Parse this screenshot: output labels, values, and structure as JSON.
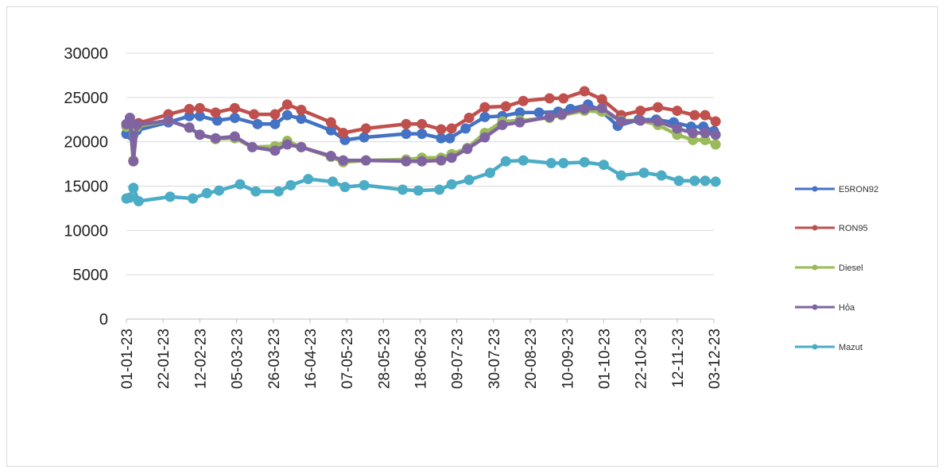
{
  "chart_data": {
    "type": "line",
    "title": "",
    "xlabel": "",
    "ylabel": "",
    "ylim": [
      0,
      30000
    ],
    "yticks": [
      0,
      5000,
      10000,
      15000,
      20000,
      25000,
      30000
    ],
    "xticks": [
      "01-01-23",
      "22-01-23",
      "12-02-23",
      "05-03-23",
      "26-03-23",
      "16-04-23",
      "07-05-23",
      "28-05-23",
      "18-06-23",
      "09-07-23",
      "30-07-23",
      "20-08-23",
      "10-09-23",
      "01-10-23",
      "22-10-23",
      "12-11-23",
      "03-12-23"
    ],
    "xrange": [
      "2023-01-01",
      "2023-12-03"
    ],
    "grid": "horizontal",
    "legend_position": "right",
    "series": [
      {
        "name": "E5RON92",
        "color": "#4472c4",
        "points": [
          [
            "2023-01-01",
            20900
          ],
          [
            "2023-01-03",
            21000
          ],
          [
            "2023-01-04",
            20700
          ],
          [
            "2023-01-05",
            20800
          ],
          [
            "2023-01-07",
            21300
          ],
          [
            "2023-01-25",
            22200
          ],
          [
            "2023-02-06",
            22900
          ],
          [
            "2023-02-12",
            22900
          ],
          [
            "2023-02-22",
            22400
          ],
          [
            "2023-03-04",
            22700
          ],
          [
            "2023-03-17",
            22000
          ],
          [
            "2023-03-27",
            22000
          ],
          [
            "2023-04-03",
            23000
          ],
          [
            "2023-04-11",
            22600
          ],
          [
            "2023-04-28",
            21300
          ],
          [
            "2023-05-06",
            20200
          ],
          [
            "2023-05-17",
            20500
          ],
          [
            "2023-06-10",
            20900
          ],
          [
            "2023-06-19",
            20900
          ],
          [
            "2023-06-30",
            20400
          ],
          [
            "2023-07-05",
            20400
          ],
          [
            "2023-07-14",
            21500
          ],
          [
            "2023-07-25",
            22800
          ],
          [
            "2023-08-04",
            22900
          ],
          [
            "2023-08-14",
            23300
          ],
          [
            "2023-08-25",
            23300
          ],
          [
            "2023-09-05",
            23400
          ],
          [
            "2023-09-12",
            23700
          ],
          [
            "2023-09-22",
            24200
          ],
          [
            "2023-09-29",
            23600
          ],
          [
            "2023-10-09",
            21800
          ],
          [
            "2023-10-21",
            22500
          ],
          [
            "2023-10-31",
            22500
          ],
          [
            "2023-11-10",
            22200
          ],
          [
            "2023-11-20",
            21700
          ],
          [
            "2023-11-27",
            21700
          ],
          [
            "2023-12-03",
            21200
          ]
        ]
      },
      {
        "name": "RON95",
        "color": "#c0504d",
        "points": [
          [
            "2023-01-01",
            22000
          ],
          [
            "2023-01-04",
            21800
          ],
          [
            "2023-01-08",
            22100
          ],
          [
            "2023-01-25",
            23100
          ],
          [
            "2023-02-06",
            23700
          ],
          [
            "2023-02-12",
            23800
          ],
          [
            "2023-02-21",
            23300
          ],
          [
            "2023-03-04",
            23800
          ],
          [
            "2023-03-15",
            23100
          ],
          [
            "2023-03-27",
            23100
          ],
          [
            "2023-04-03",
            24200
          ],
          [
            "2023-04-11",
            23600
          ],
          [
            "2023-04-28",
            22200
          ],
          [
            "2023-05-05",
            21000
          ],
          [
            "2023-05-18",
            21500
          ],
          [
            "2023-06-10",
            22000
          ],
          [
            "2023-06-19",
            22000
          ],
          [
            "2023-06-30",
            21400
          ],
          [
            "2023-07-06",
            21500
          ],
          [
            "2023-07-16",
            22700
          ],
          [
            "2023-07-25",
            23900
          ],
          [
            "2023-08-06",
            24000
          ],
          [
            "2023-08-16",
            24600
          ],
          [
            "2023-08-31",
            24900
          ],
          [
            "2023-09-08",
            24900
          ],
          [
            "2023-09-20",
            25700
          ],
          [
            "2023-09-30",
            24800
          ],
          [
            "2023-10-11",
            23000
          ],
          [
            "2023-10-22",
            23500
          ],
          [
            "2023-11-01",
            23900
          ],
          [
            "2023-11-12",
            23500
          ],
          [
            "2023-11-22",
            23000
          ],
          [
            "2023-11-28",
            23000
          ],
          [
            "2023-12-04",
            22300
          ]
        ]
      },
      {
        "name": "Diesel",
        "color": "#9bbb59",
        "points": [
          [
            "2023-01-01",
            21700
          ],
          [
            "2023-01-03",
            22000
          ],
          [
            "2023-01-05",
            17900
          ],
          [
            "2023-01-07",
            21700
          ],
          [
            "2023-01-25",
            22400
          ],
          [
            "2023-02-06",
            21600
          ],
          [
            "2023-02-12",
            20800
          ],
          [
            "2023-02-21",
            20300
          ],
          [
            "2023-03-04",
            20400
          ],
          [
            "2023-03-14",
            19400
          ],
          [
            "2023-03-27",
            19500
          ],
          [
            "2023-04-03",
            20100
          ],
          [
            "2023-04-11",
            19400
          ],
          [
            "2023-04-28",
            18300
          ],
          [
            "2023-05-05",
            17700
          ],
          [
            "2023-05-18",
            17900
          ],
          [
            "2023-06-10",
            18000
          ],
          [
            "2023-06-19",
            18200
          ],
          [
            "2023-06-30",
            18200
          ],
          [
            "2023-07-06",
            18600
          ],
          [
            "2023-07-15",
            19300
          ],
          [
            "2023-07-25",
            21000
          ],
          [
            "2023-08-04",
            22300
          ],
          [
            "2023-08-14",
            22400
          ],
          [
            "2023-08-31",
            22700
          ],
          [
            "2023-09-07",
            23000
          ],
          [
            "2023-09-20",
            23500
          ],
          [
            "2023-09-30",
            23400
          ],
          [
            "2023-10-11",
            22400
          ],
          [
            "2023-10-22",
            22400
          ],
          [
            "2023-11-01",
            21900
          ],
          [
            "2023-11-12",
            20800
          ],
          [
            "2023-11-21",
            20200
          ],
          [
            "2023-11-28",
            20200
          ],
          [
            "2023-12-04",
            19700
          ]
        ]
      },
      {
        "name": "Hỏa",
        "color": "#8064a2",
        "points": [
          [
            "2023-01-01",
            22000
          ],
          [
            "2023-01-03",
            22700
          ],
          [
            "2023-01-05",
            17800
          ],
          [
            "2023-01-07",
            21900
          ],
          [
            "2023-01-25",
            22400
          ],
          [
            "2023-02-06",
            21600
          ],
          [
            "2023-02-12",
            20800
          ],
          [
            "2023-02-21",
            20400
          ],
          [
            "2023-03-04",
            20600
          ],
          [
            "2023-03-14",
            19400
          ],
          [
            "2023-03-27",
            19000
          ],
          [
            "2023-04-03",
            19700
          ],
          [
            "2023-04-11",
            19400
          ],
          [
            "2023-04-28",
            18400
          ],
          [
            "2023-05-05",
            17900
          ],
          [
            "2023-05-18",
            17900
          ],
          [
            "2023-06-10",
            17800
          ],
          [
            "2023-06-19",
            17800
          ],
          [
            "2023-06-30",
            17900
          ],
          [
            "2023-07-06",
            18200
          ],
          [
            "2023-07-15",
            19200
          ],
          [
            "2023-07-25",
            20500
          ],
          [
            "2023-08-04",
            21900
          ],
          [
            "2023-08-14",
            22200
          ],
          [
            "2023-08-31",
            22800
          ],
          [
            "2023-09-07",
            23100
          ],
          [
            "2023-09-20",
            23700
          ],
          [
            "2023-09-30",
            23800
          ],
          [
            "2023-10-11",
            22300
          ],
          [
            "2023-10-22",
            22400
          ],
          [
            "2023-11-01",
            22300
          ],
          [
            "2023-11-12",
            21500
          ],
          [
            "2023-11-21",
            21000
          ],
          [
            "2023-11-28",
            21000
          ],
          [
            "2023-12-04",
            20800
          ]
        ]
      },
      {
        "name": "Mazut",
        "color": "#4bacc6",
        "points": [
          [
            "2023-01-01",
            13600
          ],
          [
            "2023-01-03",
            13700
          ],
          [
            "2023-01-05",
            14800
          ],
          [
            "2023-01-08",
            13300
          ],
          [
            "2023-01-26",
            13800
          ],
          [
            "2023-02-08",
            13600
          ],
          [
            "2023-02-16",
            14200
          ],
          [
            "2023-02-23",
            14500
          ],
          [
            "2023-03-07",
            15200
          ],
          [
            "2023-03-16",
            14400
          ],
          [
            "2023-03-29",
            14400
          ],
          [
            "2023-04-05",
            15100
          ],
          [
            "2023-04-15",
            15800
          ],
          [
            "2023-04-29",
            15500
          ],
          [
            "2023-05-06",
            14900
          ],
          [
            "2023-05-17",
            15100
          ],
          [
            "2023-06-08",
            14600
          ],
          [
            "2023-06-17",
            14500
          ],
          [
            "2023-06-29",
            14600
          ],
          [
            "2023-07-06",
            15200
          ],
          [
            "2023-07-16",
            15700
          ],
          [
            "2023-07-28",
            16500
          ],
          [
            "2023-08-06",
            17800
          ],
          [
            "2023-08-16",
            17900
          ],
          [
            "2023-09-01",
            17600
          ],
          [
            "2023-09-08",
            17600
          ],
          [
            "2023-09-20",
            17700
          ],
          [
            "2023-10-01",
            17400
          ],
          [
            "2023-10-11",
            16200
          ],
          [
            "2023-10-24",
            16500
          ],
          [
            "2023-11-03",
            16200
          ],
          [
            "2023-11-13",
            15600
          ],
          [
            "2023-11-22",
            15600
          ],
          [
            "2023-11-28",
            15600
          ],
          [
            "2023-12-04",
            15500
          ]
        ]
      }
    ]
  }
}
